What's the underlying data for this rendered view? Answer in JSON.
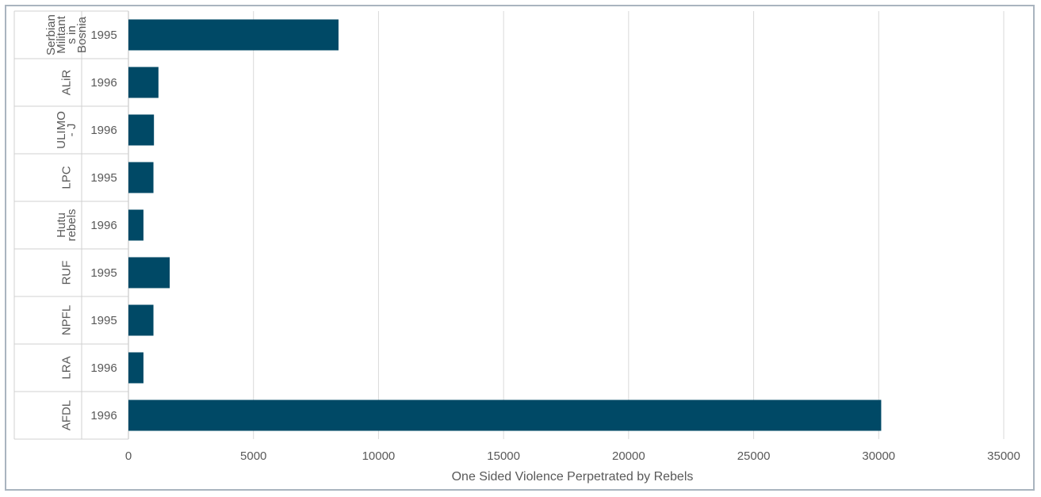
{
  "chart_data": {
    "type": "bar",
    "orientation": "horizontal",
    "categories": [
      {
        "group": [
          "Serbian",
          "Militant",
          "s in",
          "Bosnia"
        ],
        "year": "1995"
      },
      {
        "group": [
          "ALiR"
        ],
        "year": "1996"
      },
      {
        "group": [
          "ULIMO",
          "- J"
        ],
        "year": "1996"
      },
      {
        "group": [
          "LPC"
        ],
        "year": "1995"
      },
      {
        "group": [
          "Hutu",
          "rebels"
        ],
        "year": "1996"
      },
      {
        "group": [
          "RUF"
        ],
        "year": "1995"
      },
      {
        "group": [
          "NPFL"
        ],
        "year": "1995"
      },
      {
        "group": [
          "LRA"
        ],
        "year": "1996"
      },
      {
        "group": [
          "AFDL"
        ],
        "year": "1996"
      }
    ],
    "values": [
      8400,
      1200,
      1020,
      1000,
      600,
      1650,
      1000,
      600,
      30100
    ],
    "xlabel": "One Sided Violence Perpetrated by Rebels",
    "xlim": [
      0,
      35000
    ],
    "xticks": [
      "0",
      "5000",
      "10000",
      "15000",
      "20000",
      "25000",
      "30000",
      "35000"
    ],
    "grid": true,
    "colors": {
      "bar": "#004966",
      "grid": "#d9d9d9",
      "text": "#595959",
      "border": "#a9b4bf"
    }
  }
}
